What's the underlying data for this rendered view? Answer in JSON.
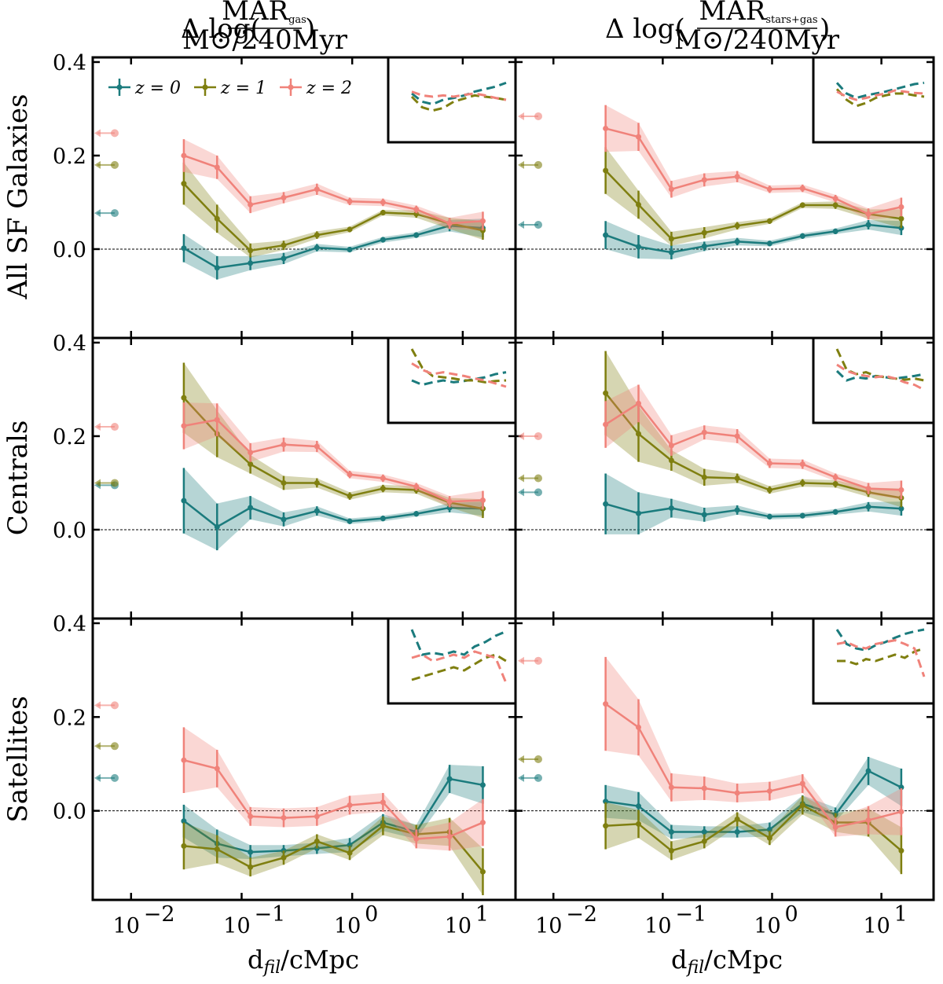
{
  "chart_data": {
    "type": "line",
    "title": "",
    "xlabel": "d_fil/cMpc",
    "xscale": "log",
    "xlim": [
      0.0045,
      30
    ],
    "ylim": [
      -0.19,
      0.41
    ],
    "yticks": [
      0.0,
      0.2,
      0.4
    ],
    "ytick_labels": [
      "0.0",
      "0.2",
      "0.4"
    ],
    "xticks": [
      0.01,
      0.1,
      1,
      10
    ],
    "xtick_labels": [
      "10",
      "10",
      "10",
      "10"
    ],
    "xtick_exponents": [
      "−2",
      "−1",
      "0",
      "1"
    ],
    "grid": false,
    "legend_position": "top-left of the top-left panel",
    "reference_line": 0.0,
    "columns": [
      {
        "title_prefix": "Δ log(",
        "title_num": "MAR",
        "title_num_sub": "gas",
        "title_den": "M⊙/240Myr",
        "title_suffix": ")"
      },
      {
        "title_prefix": "Δ log(",
        "title_num": "MAR",
        "title_num_sub": "stars+gas",
        "title_den": "M⊙/240Myr",
        "title_suffix": ")"
      }
    ],
    "rows": [
      "All SF Galaxies",
      "Centrals",
      "Satellites"
    ],
    "x": [
      0.03,
      0.06,
      0.12,
      0.24,
      0.48,
      0.95,
      1.9,
      3.8,
      7.6,
      15.2
    ],
    "series_meta": [
      {
        "name": "z = 0",
        "prefix": "z",
        "value": "0",
        "color": "#1b7b7d"
      },
      {
        "name": "z = 1",
        "prefix": "z",
        "value": "1",
        "color": "#7f7f10"
      },
      {
        "name": "z = 2",
        "prefix": "z",
        "value": "2",
        "color": "#f0827a"
      }
    ],
    "panels": [
      {
        "row": "All SF Galaxies",
        "column": "MAR_gas",
        "series": [
          {
            "name": "z = 0",
            "values": [
              0.002,
              -0.04,
              -0.03,
              -0.02,
              0.003,
              -0.001,
              0.02,
              0.03,
              0.05,
              0.045
            ],
            "err": [
              0.03,
              0.025,
              0.015,
              0.012,
              0.008,
              0.006,
              0.006,
              0.006,
              0.012,
              0.02
            ],
            "arrow": 0.077
          },
          {
            "name": "z = 1",
            "values": [
              0.14,
              0.065,
              -0.003,
              0.008,
              0.03,
              0.042,
              0.078,
              0.075,
              0.055,
              0.04
            ],
            "err": [
              0.045,
              0.03,
              0.015,
              0.01,
              0.008,
              0.006,
              0.006,
              0.008,
              0.012,
              0.02
            ],
            "arrow": 0.18
          },
          {
            "name": "z = 2",
            "values": [
              0.2,
              0.175,
              0.095,
              0.11,
              0.128,
              0.102,
              0.1,
              0.085,
              0.055,
              0.06
            ],
            "err": [
              0.035,
              0.025,
              0.018,
              0.012,
              0.012,
              0.008,
              0.008,
              0.008,
              0.012,
              0.02
            ],
            "arrow": 0.248
          }
        ],
        "inset": {
          "z = 0": [
            0.55,
            0.42,
            0.38,
            0.45,
            0.48,
            0.52,
            0.58,
            0.62,
            0.66,
            0.72
          ],
          "z = 1": [
            0.5,
            0.33,
            0.28,
            0.32,
            0.42,
            0.47,
            0.52,
            0.5,
            0.48,
            0.45
          ],
          "z = 2": [
            0.58,
            0.52,
            0.5,
            0.52,
            0.5,
            0.53,
            0.55,
            0.52,
            0.48,
            0.45
          ]
        }
      },
      {
        "row": "All SF Galaxies",
        "column": "MAR_stars+gas",
        "series": [
          {
            "name": "z = 0",
            "values": [
              0.03,
              0.005,
              -0.007,
              0.006,
              0.016,
              0.012,
              0.028,
              0.038,
              0.052,
              0.045
            ],
            "err": [
              0.03,
              0.025,
              0.015,
              0.01,
              0.008,
              0.006,
              0.006,
              0.006,
              0.01,
              0.015
            ],
            "arrow": 0.052
          },
          {
            "name": "z = 1",
            "values": [
              0.168,
              0.095,
              0.022,
              0.035,
              0.05,
              0.06,
              0.094,
              0.094,
              0.075,
              0.065
            ],
            "err": [
              0.05,
              0.03,
              0.015,
              0.012,
              0.008,
              0.006,
              0.006,
              0.008,
              0.01,
              0.02
            ],
            "arrow": 0.18
          },
          {
            "name": "z = 2",
            "values": [
              0.258,
              0.24,
              0.128,
              0.148,
              0.155,
              0.128,
              0.13,
              0.108,
              0.075,
              0.09
            ],
            "err": [
              0.05,
              0.03,
              0.018,
              0.014,
              0.012,
              0.008,
              0.008,
              0.008,
              0.012,
              0.02
            ],
            "arrow": 0.284
          }
        ],
        "inset": {
          "z = 0": [
            0.72,
            0.55,
            0.48,
            0.52,
            0.55,
            0.58,
            0.62,
            0.66,
            0.7,
            0.72
          ],
          "z = 1": [
            0.62,
            0.45,
            0.35,
            0.4,
            0.48,
            0.52,
            0.55,
            0.55,
            0.52,
            0.5
          ],
          "z = 2": [
            0.58,
            0.5,
            0.45,
            0.48,
            0.52,
            0.55,
            0.6,
            0.58,
            0.56,
            0.55
          ]
        }
      },
      {
        "row": "Centrals",
        "column": "MAR_gas",
        "series": [
          {
            "name": "z = 0",
            "values": [
              0.062,
              0.006,
              0.047,
              0.022,
              0.04,
              0.018,
              0.024,
              0.034,
              0.047,
              0.045
            ],
            "err": [
              0.07,
              0.05,
              0.025,
              0.015,
              0.01,
              0.006,
              0.006,
              0.006,
              0.01,
              0.015
            ],
            "arrow": 0.095
          },
          {
            "name": "z = 1",
            "values": [
              0.282,
              0.205,
              0.14,
              0.1,
              0.1,
              0.072,
              0.088,
              0.085,
              0.058,
              0.045
            ],
            "err": [
              0.075,
              0.05,
              0.02,
              0.015,
              0.01,
              0.008,
              0.008,
              0.008,
              0.01,
              0.02
            ],
            "arrow": 0.1
          },
          {
            "name": "z = 2",
            "values": [
              0.222,
              0.235,
              0.165,
              0.182,
              0.178,
              0.118,
              0.11,
              0.092,
              0.06,
              0.063
            ],
            "err": [
              0.05,
              0.035,
              0.02,
              0.015,
              0.012,
              0.008,
              0.008,
              0.008,
              0.012,
              0.02
            ],
            "arrow": 0.22
          }
        ],
        "inset": {
          "z = 0": [
            0.45,
            0.38,
            0.42,
            0.45,
            0.42,
            0.44,
            0.47,
            0.5,
            0.55,
            0.58
          ],
          "z = 1": [
            0.95,
            0.65,
            0.52,
            0.5,
            0.48,
            0.45,
            0.45,
            0.42,
            0.44,
            0.45
          ],
          "z = 2": [
            0.72,
            0.62,
            0.55,
            0.58,
            0.55,
            0.52,
            0.48,
            0.45,
            0.4,
            0.35
          ]
        }
      },
      {
        "row": "Centrals",
        "column": "MAR_stars+gas",
        "series": [
          {
            "name": "z = 0",
            "values": [
              0.055,
              0.035,
              0.046,
              0.032,
              0.042,
              0.028,
              0.03,
              0.038,
              0.049,
              0.045
            ],
            "err": [
              0.065,
              0.045,
              0.02,
              0.015,
              0.01,
              0.006,
              0.006,
              0.006,
              0.01,
              0.015
            ],
            "arrow": 0.08
          },
          {
            "name": "z = 1",
            "values": [
              0.292,
              0.205,
              0.148,
              0.112,
              0.11,
              0.085,
              0.1,
              0.098,
              0.08,
              0.068
            ],
            "err": [
              0.09,
              0.06,
              0.022,
              0.018,
              0.01,
              0.008,
              0.008,
              0.008,
              0.01,
              0.02
            ],
            "arrow": 0.11
          },
          {
            "name": "z = 2",
            "values": [
              0.225,
              0.27,
              0.18,
              0.208,
              0.2,
              0.142,
              0.14,
              0.112,
              0.088,
              0.085
            ],
            "err": [
              0.05,
              0.04,
              0.022,
              0.015,
              0.015,
              0.01,
              0.01,
              0.008,
              0.012,
              0.02
            ],
            "arrow": 0.2
          }
        ],
        "inset": {
          "z = 0": [
            0.6,
            0.45,
            0.5,
            0.48,
            0.52,
            0.5,
            0.48,
            0.5,
            0.52,
            0.55
          ],
          "z = 1": [
            0.95,
            0.62,
            0.55,
            0.58,
            0.52,
            0.5,
            0.48,
            0.46,
            0.48,
            0.45
          ],
          "z = 2": [
            0.7,
            0.6,
            0.55,
            0.52,
            0.5,
            0.52,
            0.48,
            0.42,
            0.38,
            0.3
          ]
        }
      },
      {
        "row": "Satellites",
        "column": "MAR_gas",
        "series": [
          {
            "name": "z = 0",
            "values": [
              -0.022,
              -0.07,
              -0.088,
              -0.085,
              -0.08,
              -0.073,
              -0.025,
              -0.045,
              0.068,
              0.055
            ],
            "err": [
              0.035,
              0.03,
              0.015,
              0.012,
              0.012,
              0.015,
              0.018,
              0.015,
              0.03,
              0.04
            ],
            "arrow": 0.07
          },
          {
            "name": "z = 1",
            "values": [
              -0.075,
              -0.082,
              -0.12,
              -0.1,
              -0.065,
              -0.09,
              -0.032,
              -0.05,
              -0.045,
              -0.13
            ],
            "err": [
              0.05,
              0.03,
              0.02,
              0.015,
              0.015,
              0.015,
              0.02,
              0.02,
              0.03,
              0.05
            ],
            "arrow": 0.138
          },
          {
            "name": "z = 2",
            "values": [
              0.108,
              0.09,
              -0.012,
              -0.015,
              -0.012,
              0.012,
              0.018,
              -0.06,
              -0.055,
              -0.025
            ],
            "err": [
              0.07,
              0.04,
              0.02,
              0.02,
              0.02,
              0.02,
              0.02,
              0.02,
              0.03,
              0.05
            ],
            "arrow": 0.225
          }
        ],
        "inset": {
          "z = 0": [
            0.95,
            0.55,
            0.58,
            0.55,
            0.6,
            0.55,
            0.68,
            0.75,
            0.85,
            0.92
          ],
          "z = 1": [
            0.15,
            0.2,
            0.25,
            0.3,
            0.35,
            0.3,
            0.4,
            0.5,
            0.55,
            0.45
          ],
          "z = 2": [
            0.5,
            0.55,
            0.45,
            0.5,
            0.55,
            0.5,
            0.6,
            0.55,
            0.5,
            0.1
          ]
        }
      },
      {
        "row": "Satellites",
        "column": "MAR_stars+gas",
        "series": [
          {
            "name": "z = 0",
            "values": [
              0.02,
              0.01,
              -0.045,
              -0.045,
              -0.045,
              -0.04,
              0.015,
              -0.008,
              0.085,
              0.05
            ],
            "err": [
              0.035,
              0.03,
              0.015,
              0.012,
              0.012,
              0.015,
              0.018,
              0.015,
              0.03,
              0.04
            ],
            "arrow": 0.07
          },
          {
            "name": "z = 1",
            "values": [
              -0.032,
              -0.028,
              -0.085,
              -0.065,
              -0.018,
              -0.058,
              0.012,
              -0.025,
              -0.025,
              -0.085
            ],
            "err": [
              0.05,
              0.03,
              0.02,
              0.015,
              0.015,
              0.015,
              0.02,
              0.02,
              0.03,
              0.05
            ],
            "arrow": 0.11
          },
          {
            "name": "z = 2",
            "values": [
              0.228,
              0.178,
              0.05,
              0.048,
              0.038,
              0.042,
              0.058,
              -0.035,
              -0.02,
              -0.002
            ],
            "err": [
              0.1,
              0.06,
              0.03,
              0.025,
              0.02,
              0.02,
              0.02,
              0.02,
              0.03,
              0.05
            ],
            "arrow": 0.32
          }
        ],
        "inset": {
          "z = 0": [
            0.95,
            0.72,
            0.65,
            0.62,
            0.7,
            0.75,
            0.82,
            0.88,
            0.92,
            0.95
          ],
          "z = 1": [
            0.45,
            0.45,
            0.4,
            0.48,
            0.45,
            0.5,
            0.55,
            0.5,
            0.6,
            0.65
          ],
          "z = 2": [
            0.72,
            0.75,
            0.68,
            0.65,
            0.72,
            0.75,
            0.78,
            0.72,
            0.65,
            0.2
          ]
        }
      }
    ]
  }
}
